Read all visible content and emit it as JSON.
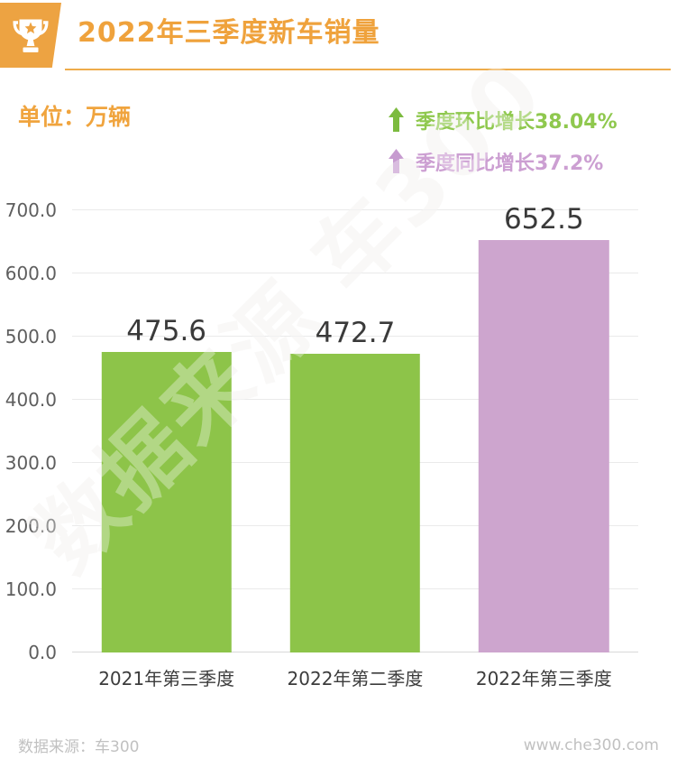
{
  "header": {
    "title": "2022年三季度新车销量"
  },
  "unit_label": "单位：万辆",
  "legend": [
    {
      "label": "季度环比增长38.04%",
      "text_color": "#8FC84E",
      "arrow_color": "#7CBB3F"
    },
    {
      "label": "季度同比增长37.2%",
      "text_color": "#CC9FD2",
      "arrow_color": "#C79BD0"
    }
  ],
  "watermark": "数据来源 车300",
  "footer": {
    "source": "数据来源：车300",
    "site": "www.che300.com"
  },
  "colors": {
    "accent_orange": "#EFA23C",
    "divider_orange": "#EEAC4B",
    "bar_green": "#8DC449",
    "bar_purple": "#CDA5CE",
    "gridline": "#EAEAEA",
    "value_text": "#3A3A3A",
    "footer_text": "#C1C1C1"
  },
  "chart_data": {
    "type": "bar",
    "title": "2022年三季度新车销量",
    "unit": "万辆",
    "categories": [
      "2021年第三季度",
      "2022年第二季度",
      "2022年第三季度"
    ],
    "values": [
      475.6,
      472.7,
      652.5
    ],
    "value_labels": [
      "475.6",
      "472.7",
      "652.5"
    ],
    "bar_colors": [
      "#8DC449",
      "#8DC449",
      "#CDA5CE"
    ],
    "ylim": [
      0,
      700
    ],
    "ytick_step": 100,
    "ytick_format_decimals": 1,
    "grid": true,
    "legend_position": "top-right",
    "annotations": [
      "季度环比增长38.04%",
      "季度同比增长37.2%"
    ]
  }
}
